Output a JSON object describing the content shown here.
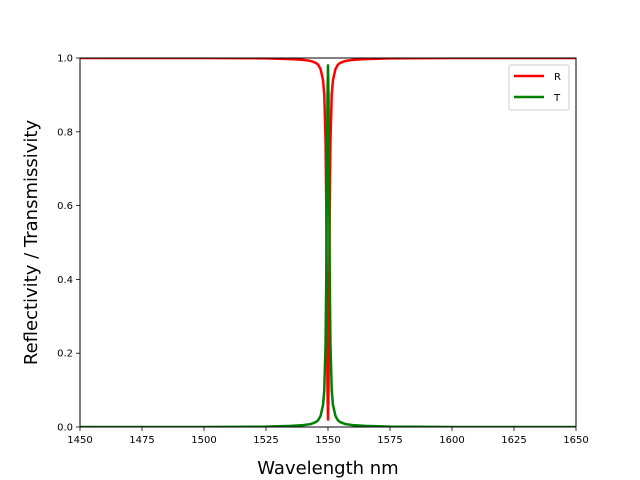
{
  "chart_data": {
    "type": "line",
    "title": "",
    "xlabel": "Wavelength nm",
    "ylabel": "Reflectivity / Transmissivity",
    "xlim": [
      1450,
      1650
    ],
    "ylim": [
      0.0,
      1.0
    ],
    "xticks": [
      1450,
      1475,
      1500,
      1525,
      1550,
      1575,
      1600,
      1625,
      1650
    ],
    "yticks": [
      0.0,
      0.2,
      0.4,
      0.6,
      0.8,
      1.0
    ],
    "xtick_labels": [
      "1450",
      "1475",
      "1500",
      "1525",
      "1550",
      "1575",
      "1600",
      "1625",
      "1650"
    ],
    "ytick_labels": [
      "0.0",
      "0.2",
      "0.4",
      "0.6",
      "0.8",
      "1.0"
    ],
    "grid": false,
    "legend": "top-right",
    "series": [
      {
        "name": "R",
        "color": "#ff0000",
        "x": [
          1450,
          1500,
          1525,
          1535,
          1540,
          1543,
          1545,
          1546,
          1547,
          1548,
          1548.5,
          1549,
          1549.3,
          1549.6,
          1549.8,
          1550,
          1550.2,
          1550.4,
          1550.7,
          1551,
          1551.5,
          1552,
          1553,
          1554,
          1555,
          1557,
          1560,
          1565,
          1575,
          1600,
          1650
        ],
        "y": [
          1.0,
          1.0,
          0.999,
          0.997,
          0.995,
          0.992,
          0.987,
          0.982,
          0.97,
          0.94,
          0.9,
          0.78,
          0.6,
          0.3,
          0.1,
          0.02,
          0.1,
          0.3,
          0.6,
          0.78,
          0.9,
          0.94,
          0.97,
          0.982,
          0.987,
          0.992,
          0.995,
          0.997,
          0.999,
          1.0,
          1.0
        ]
      },
      {
        "name": "T",
        "color": "#008000",
        "x": [
          1450,
          1500,
          1525,
          1535,
          1540,
          1543,
          1545,
          1546,
          1547,
          1548,
          1548.5,
          1549,
          1549.3,
          1549.6,
          1549.8,
          1550,
          1550.2,
          1550.4,
          1550.7,
          1551,
          1551.5,
          1552,
          1553,
          1554,
          1555,
          1557,
          1560,
          1565,
          1575,
          1600,
          1650
        ],
        "y": [
          0.0,
          0.0,
          0.001,
          0.003,
          0.005,
          0.008,
          0.013,
          0.018,
          0.03,
          0.06,
          0.1,
          0.22,
          0.4,
          0.7,
          0.9,
          0.98,
          0.9,
          0.7,
          0.4,
          0.22,
          0.1,
          0.06,
          0.03,
          0.018,
          0.013,
          0.008,
          0.005,
          0.003,
          0.001,
          0.0,
          0.0
        ]
      }
    ]
  }
}
